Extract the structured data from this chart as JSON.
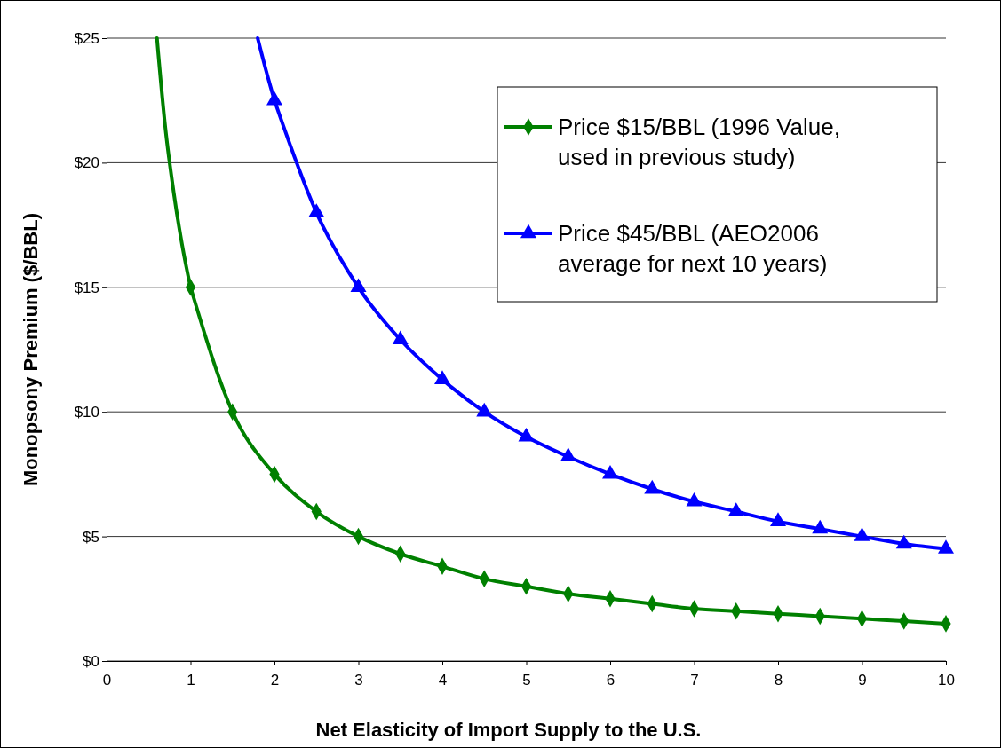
{
  "chart_data": {
    "type": "line",
    "xlabel": "Net Elasticity of Import Supply to the U.S.",
    "ylabel": "Monopsony Premium ($/BBL)",
    "xlim": [
      0,
      10
    ],
    "xticks": [
      0,
      1,
      2,
      3,
      4,
      5,
      6,
      7,
      8,
      9,
      10
    ],
    "ylim": [
      0,
      25
    ],
    "yticks": [
      {
        "value": 0,
        "label": "$0"
      },
      {
        "value": 5,
        "label": "$5"
      },
      {
        "value": 10,
        "label": "$10"
      },
      {
        "value": 15,
        "label": "$15"
      },
      {
        "value": 20,
        "label": "$20"
      },
      {
        "value": 25,
        "label": "$25"
      }
    ],
    "grid": "y",
    "legend": "top right",
    "line_style": "solid",
    "series": [
      {
        "name": "Price $15/BBL (1996 Value, used in previous study)",
        "color": "#008000",
        "marker": "diamond",
        "x": [
          1,
          1.5,
          2,
          2.5,
          3,
          3.5,
          4,
          4.5,
          5,
          5.5,
          6,
          6.5,
          7,
          7.5,
          8,
          8.5,
          9,
          9.5,
          10
        ],
        "values": [
          15,
          10,
          7.5,
          6,
          5,
          4.3,
          3.8,
          3.3,
          3,
          2.7,
          2.5,
          2.3,
          2.1,
          2,
          1.9,
          1.8,
          1.7,
          1.6,
          1.5
        ]
      },
      {
        "name": "Price $45/BBL (AEO2006 average for next 10 years)",
        "color": "#0000ff",
        "marker": "triangle",
        "x": [
          2,
          2.5,
          3,
          3.5,
          4,
          4.5,
          5,
          5.5,
          6,
          6.5,
          7,
          7.5,
          8,
          8.5,
          9,
          9.5,
          10
        ],
        "values": [
          22.5,
          18,
          15,
          12.9,
          11.3,
          10,
          9,
          8.2,
          7.5,
          6.9,
          6.4,
          6,
          5.6,
          5.3,
          5,
          4.7,
          4.5
        ]
      },
      {
        "color": "#008000",
        "marker": "none",
        "x": [
          0.6,
          0.7,
          0.8,
          0.9,
          1
        ],
        "values": [
          25,
          21.4,
          18.8,
          16.7,
          15
        ]
      },
      {
        "color": "#0000ff",
        "marker": "none",
        "x": [
          1.8,
          1.9,
          2
        ],
        "values": [
          25,
          23.7,
          22.5
        ]
      }
    ]
  }
}
